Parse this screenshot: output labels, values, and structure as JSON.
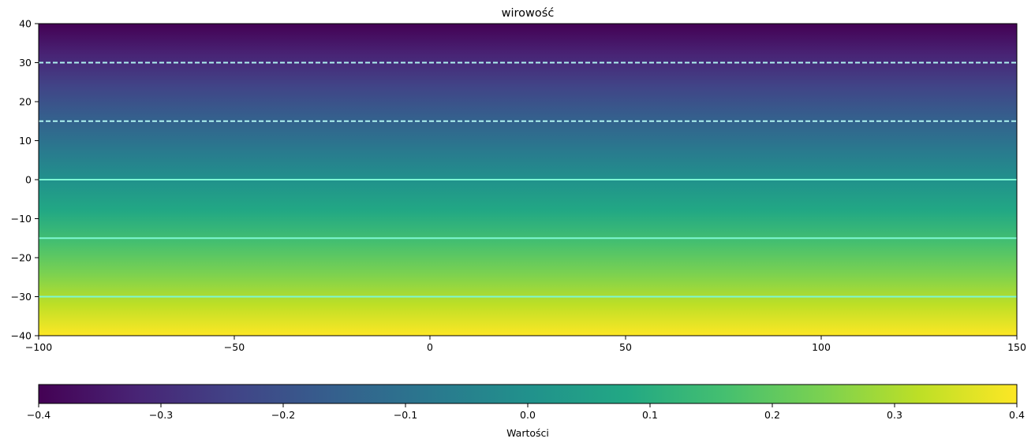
{
  "chart_data": {
    "type": "heatmap",
    "title": "wirowość",
    "xlim": [
      -100,
      150
    ],
    "ylim": [
      -40,
      40
    ],
    "x_ticks": [
      -100,
      -50,
      0,
      50,
      100,
      150
    ],
    "y_ticks": [
      40,
      30,
      20,
      10,
      0,
      -10,
      -20,
      -30,
      -40
    ],
    "field": {
      "varies_along": "y",
      "colormap": "viridis",
      "value_at_y_top": -0.4,
      "value_at_y_bottom": 0.4
    },
    "contours": [
      {
        "y": 30,
        "style": "dashed"
      },
      {
        "y": 15,
        "style": "dashed"
      },
      {
        "y": 0,
        "style": "solid"
      },
      {
        "y": -15,
        "style": "solid"
      },
      {
        "y": -30,
        "style": "solid"
      }
    ],
    "colorbar": {
      "orientation": "horizontal",
      "label": "Wartości",
      "range": [
        -0.4,
        0.4
      ],
      "ticks": [
        -0.4,
        -0.3,
        -0.2,
        -0.1,
        0.0,
        0.1,
        0.2,
        0.3,
        0.4
      ]
    }
  }
}
